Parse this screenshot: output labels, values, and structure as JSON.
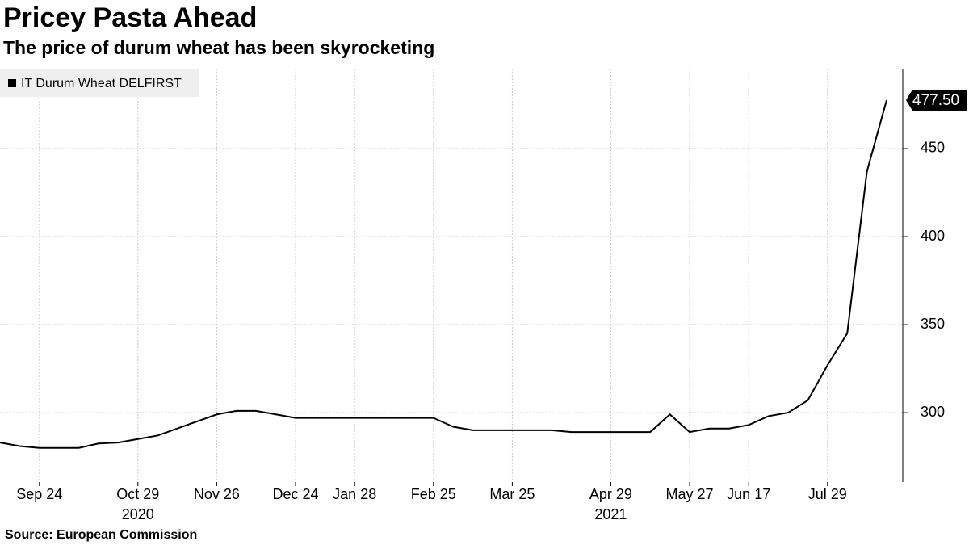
{
  "chart_data": {
    "type": "line",
    "title": "Pricey Pasta Ahead",
    "subtitle": "The price of durum wheat has been skyrocketing",
    "source": "Source: European Commission",
    "categories": [
      null,
      null,
      "Sep 24",
      null,
      null,
      null,
      null,
      "Oct 29",
      null,
      null,
      null,
      "Nov 26",
      null,
      null,
      null,
      "Dec 24",
      null,
      null,
      "Jan 28",
      null,
      null,
      null,
      "Feb 25",
      null,
      null,
      null,
      "Mar 25",
      null,
      null,
      null,
      null,
      "Apr 29",
      null,
      null,
      null,
      "May 27",
      null,
      null,
      "Jun 17",
      null,
      null,
      null,
      "Jul 29",
      null,
      null,
      null
    ],
    "years": [
      null,
      null,
      null,
      null,
      null,
      null,
      null,
      "2020",
      null,
      null,
      null,
      null,
      null,
      null,
      null,
      null,
      null,
      null,
      null,
      null,
      null,
      null,
      null,
      null,
      null,
      null,
      null,
      null,
      null,
      null,
      null,
      "2021",
      null,
      null,
      null,
      null,
      null,
      null,
      null,
      null,
      null,
      null,
      null,
      null,
      null,
      null
    ],
    "series": [
      {
        "name": "IT Durum Wheat DELFIRST",
        "color": "#000000",
        "values": [
          283,
          281,
          280,
          280,
          280,
          282.5,
          283,
          285,
          287,
          291,
          295,
          299,
          301,
          301,
          299,
          297,
          297,
          297,
          297,
          297,
          297,
          297,
          297,
          292,
          290,
          290,
          290,
          290,
          290,
          289,
          289,
          289,
          289,
          289,
          299,
          289,
          291,
          291,
          293,
          298,
          300,
          307,
          327,
          345,
          437,
          477.5
        ],
        "value_labels": [
          null,
          null,
          null,
          null,
          null,
          null,
          null,
          null,
          null,
          null,
          null,
          null,
          null,
          null,
          null,
          null,
          null,
          null,
          null,
          null,
          null,
          null,
          null,
          null,
          null,
          null,
          null,
          null,
          null,
          null,
          null,
          null,
          null,
          null,
          null,
          null,
          null,
          null,
          null,
          null,
          null,
          null,
          null,
          null,
          null,
          "477.50"
        ]
      }
    ],
    "ylim": [
      260.6,
      495.4
    ],
    "yticks": [
      300,
      350,
      400,
      450
    ],
    "grid": true,
    "legend": "top-left"
  }
}
